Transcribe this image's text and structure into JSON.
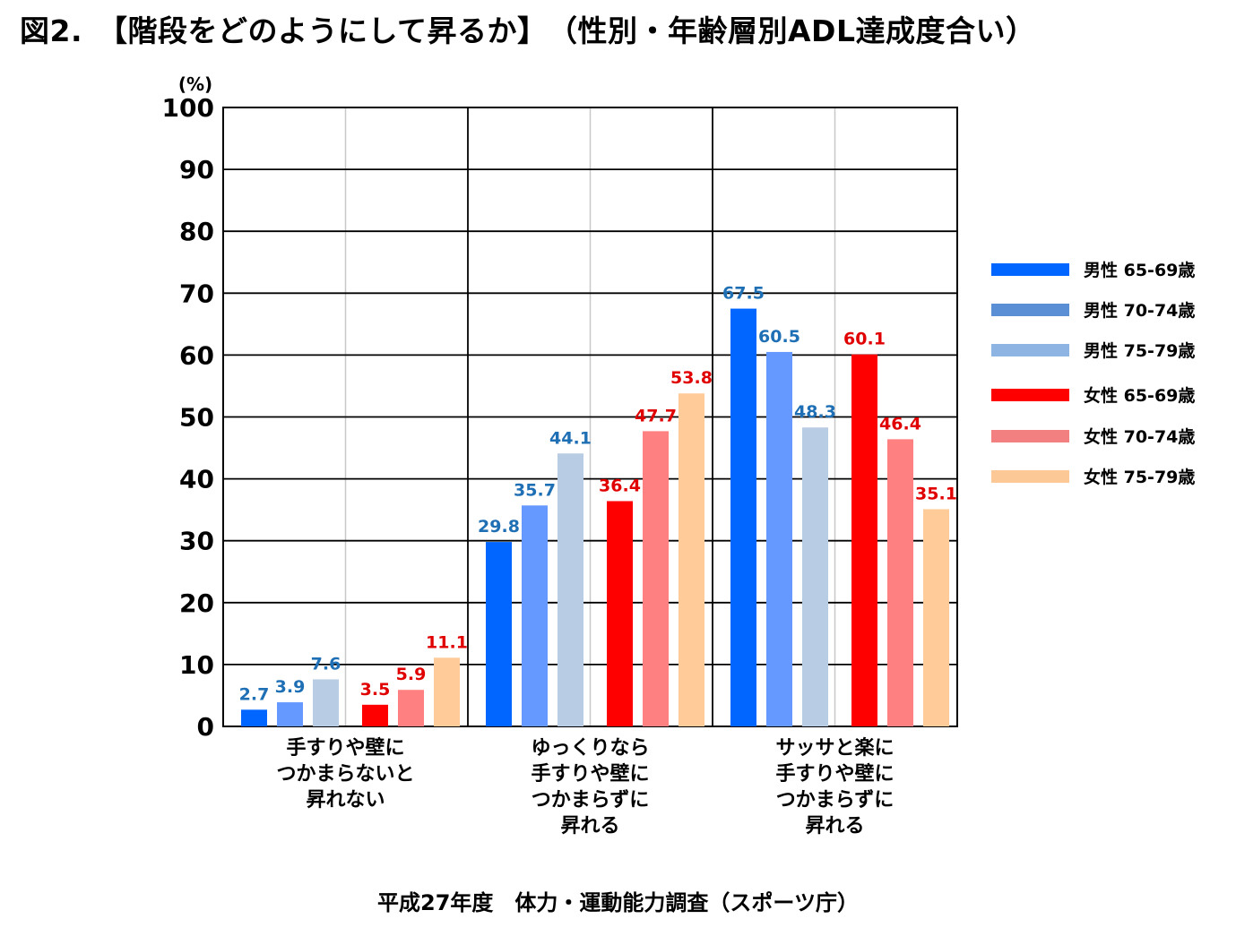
{
  "title": "図2.　【階段をどのようにして昇るか】　（性別・年齢層別ADL達成度合い）",
  "source": "平成27年度　体力・運動能力調査（スポーツ庁）",
  "chart_data": {
    "type": "bar",
    "y_unit_label": "(%)",
    "ylim": [
      0,
      100
    ],
    "yticks": [
      0,
      10,
      20,
      30,
      40,
      50,
      60,
      70,
      80,
      90,
      100
    ],
    "grid": true,
    "legend_position": "right",
    "categories": [
      [
        "手すりや壁に",
        "つかまらないと",
        "昇れない"
      ],
      [
        "ゆっくりなら",
        "手すりや壁に",
        "つかまらずに",
        "昇れる"
      ],
      [
        "サッサと楽に",
        "手すりや壁に",
        "つかまらずに",
        "昇れる"
      ]
    ],
    "series": [
      {
        "name": "男性 65-69歳",
        "color": "#0066ff",
        "label_color": "#1f6fb5",
        "values": [
          2.7,
          29.8,
          67.5
        ]
      },
      {
        "name": "男性 70-74歳",
        "color": "#6699ff",
        "label_color": "#1f6fb5",
        "values": [
          3.9,
          35.7,
          60.5
        ]
      },
      {
        "name": "男性 75-79歳",
        "color": "#b8cce4",
        "label_color": "#1f6fb5",
        "values": [
          7.6,
          44.1,
          48.3
        ]
      },
      {
        "name": "女性 65-69歳",
        "color": "#ff0000",
        "label_color": "#e00000",
        "values": [
          3.5,
          36.4,
          60.1
        ]
      },
      {
        "name": "女性 70-74歳",
        "color": "#ff8080",
        "label_color": "#e00000",
        "values": [
          5.9,
          47.7,
          46.4
        ]
      },
      {
        "name": "女性 75-79歳",
        "color": "#ffcc99",
        "label_color": "#e00000",
        "values": [
          11.1,
          53.8,
          35.1
        ]
      }
    ],
    "legend_colors": [
      "#0066ff",
      "#5a8fd6",
      "#8eb4e3",
      "#ff0000",
      "#f28080",
      "#fcc896"
    ]
  }
}
